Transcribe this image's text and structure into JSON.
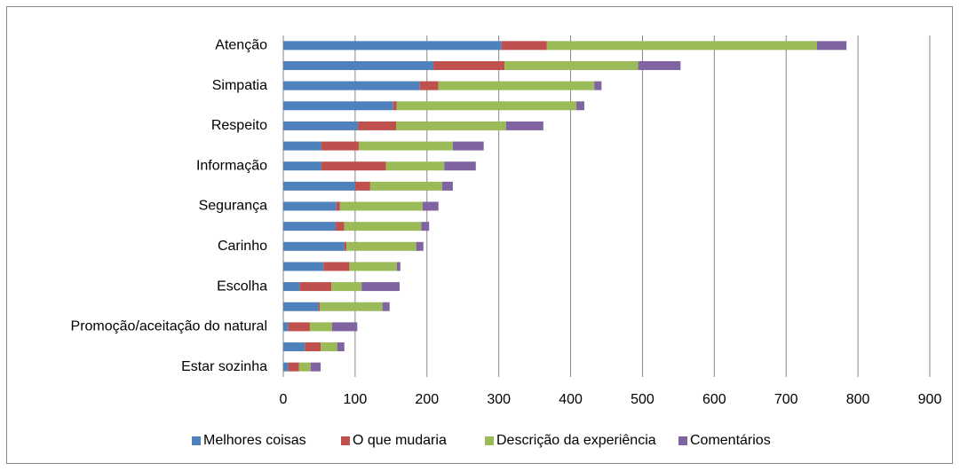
{
  "chart_data": {
    "type": "stacked-bar-horizontal",
    "categories": [
      "Atenção",
      null,
      "Simpatia",
      null,
      "Respeito",
      null,
      "Informação",
      null,
      "Segurança",
      null,
      "Carinho",
      null,
      "Escolha",
      null,
      "Promoção/aceitação do natural",
      null,
      "Estar sozinha"
    ],
    "series": [
      {
        "name": "Melhores coisas",
        "color": "#4f81bd",
        "values": [
          304,
          209,
          190,
          153,
          104,
          53,
          53,
          100,
          74,
          73,
          85,
          56,
          23,
          49,
          7,
          30,
          7
        ]
      },
      {
        "name": "O que mudaria",
        "color": "#c0504d",
        "values": [
          63,
          99,
          26,
          5,
          53,
          52,
          90,
          21,
          5,
          12,
          3,
          36,
          44,
          2,
          30,
          22,
          15
        ]
      },
      {
        "name": "Descrição da experiência",
        "color": "#9bbb59",
        "values": [
          376,
          186,
          217,
          250,
          153,
          131,
          81,
          100,
          115,
          107,
          97,
          66,
          42,
          87,
          31,
          23,
          16
        ]
      },
      {
        "name": "Comentários",
        "color": "#8064a2",
        "values": [
          41,
          59,
          10,
          11,
          52,
          43,
          44,
          15,
          22,
          11,
          10,
          5,
          53,
          10,
          35,
          10,
          14
        ]
      }
    ],
    "xlim": [
      0,
      900
    ],
    "xticks": [
      0,
      100,
      200,
      300,
      400,
      500,
      600,
      700,
      800,
      900
    ],
    "grid": true,
    "legend": "bottom"
  }
}
